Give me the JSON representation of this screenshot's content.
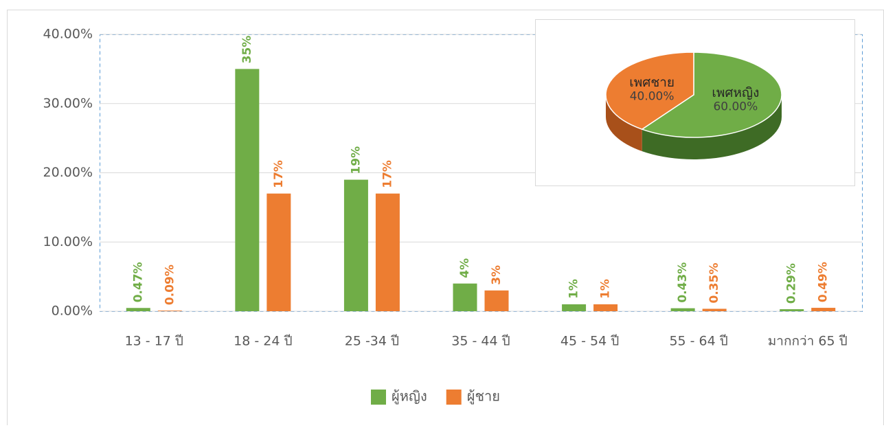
{
  "chart_data": [
    {
      "type": "bar",
      "categories": [
        "13 - 17 ปี",
        "18 - 24 ปี",
        "25 -34 ปี",
        "35 - 44 ปี",
        "45 - 54 ปี",
        "55 - 64 ปี",
        "มากกว่า 65 ปี"
      ],
      "series": [
        {
          "name": "ผู้หญิง",
          "color": "#70ad47",
          "values": [
            0.47,
            35,
            19,
            4,
            1,
            0.43,
            0.29
          ],
          "value_labels": [
            "0.47%",
            "35%",
            "19%",
            "4%",
            "1%",
            "0.43%",
            "0.29%"
          ]
        },
        {
          "name": "ผู้ชาย",
          "color": "#ed7d31",
          "values": [
            0.09,
            17,
            17,
            3,
            1,
            0.35,
            0.49
          ],
          "value_labels": [
            "0.09%",
            "17%",
            "17%",
            "3%",
            "1%",
            "0.35%",
            "0.49%"
          ]
        }
      ],
      "ylim": [
        0,
        40
      ],
      "yticks": [
        {
          "value": 0,
          "label": "0.00%"
        },
        {
          "value": 10,
          "label": "10.00%"
        },
        {
          "value": 20,
          "label": "20.00%"
        },
        {
          "value": 30,
          "label": "30.00%"
        },
        {
          "value": 40,
          "label": "40.00%"
        }
      ],
      "grid": true,
      "legend": "bottom"
    },
    {
      "type": "pie",
      "categories": [
        "เพศหญิง",
        "เพศชาย"
      ],
      "values": [
        60,
        40
      ],
      "value_labels": [
        "60.00%",
        "40.00%"
      ],
      "colors": [
        "#70ad47",
        "#ed7d31"
      ]
    }
  ]
}
